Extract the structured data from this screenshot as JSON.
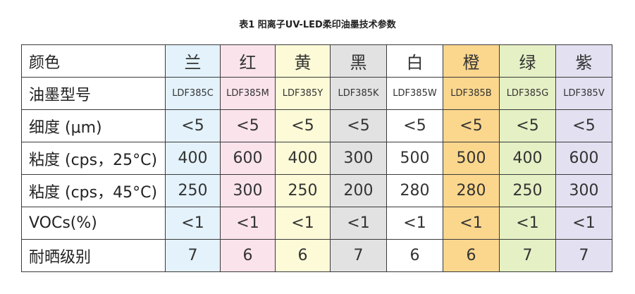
{
  "title": "表1 阳离子UV-LED柔印油墨技术参数",
  "table": {
    "rows": [
      {
        "label": "颜色",
        "cells": [
          "兰",
          "红",
          "黄",
          "黑",
          "白",
          "橙",
          "绿",
          "紫"
        ]
      },
      {
        "label": "油墨型号",
        "cells": [
          "LDF385C",
          "LDF385M",
          "LDF385Y",
          "LDF385K",
          "LDF385W",
          "LDF385B",
          "LDF385G",
          "LDF385V"
        ]
      },
      {
        "label": "细度 (μm)",
        "cells": [
          "<5",
          "<5",
          "<5",
          "<5",
          "<5",
          "<5",
          "<5",
          "<5"
        ]
      },
      {
        "label": "粘度 (cps，25°C)",
        "cells": [
          "400",
          "600",
          "400",
          "300",
          "500",
          "500",
          "400",
          "600"
        ]
      },
      {
        "label": "粘度 (cps，45°C)",
        "cells": [
          "250",
          "300",
          "250",
          "200",
          "280",
          "280",
          "250",
          "300"
        ]
      },
      {
        "label": "VOCs(%)",
        "cells": [
          "<1",
          "<1",
          "<1",
          "<1",
          "<1",
          "<1",
          "<1",
          "<1"
        ]
      },
      {
        "label": "耐晒级别",
        "cells": [
          "7",
          "6",
          "6",
          "7",
          "6",
          "6",
          "7",
          "7"
        ]
      }
    ],
    "column_colors": [
      "#e3f2fb",
      "#fbe3ec",
      "#fdfbd7",
      "#e2e2e2",
      "#ffffff",
      "#fbd78d",
      "#e5f0c4",
      "#e3e0f1"
    ]
  }
}
